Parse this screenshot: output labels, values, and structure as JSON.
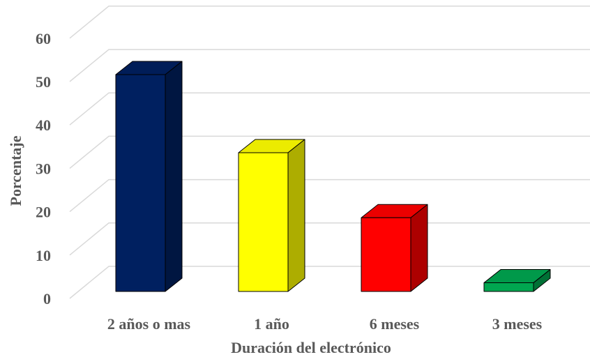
{
  "chart_data": {
    "type": "bar",
    "title": "",
    "xlabel": "Duración del electrónico",
    "ylabel": "Porcentaje",
    "categories": [
      "2 años o mas",
      "1 año",
      "6 meses",
      "3 meses"
    ],
    "values": [
      50,
      32,
      17,
      2
    ],
    "colors": [
      "#002060",
      "#ffff00",
      "#ff0000",
      "#00a650"
    ],
    "yticks": [
      "0",
      "10",
      "20",
      "30",
      "40",
      "50",
      "60"
    ],
    "ylim": [
      0,
      65
    ],
    "grid": true,
    "style": "3d-column"
  }
}
